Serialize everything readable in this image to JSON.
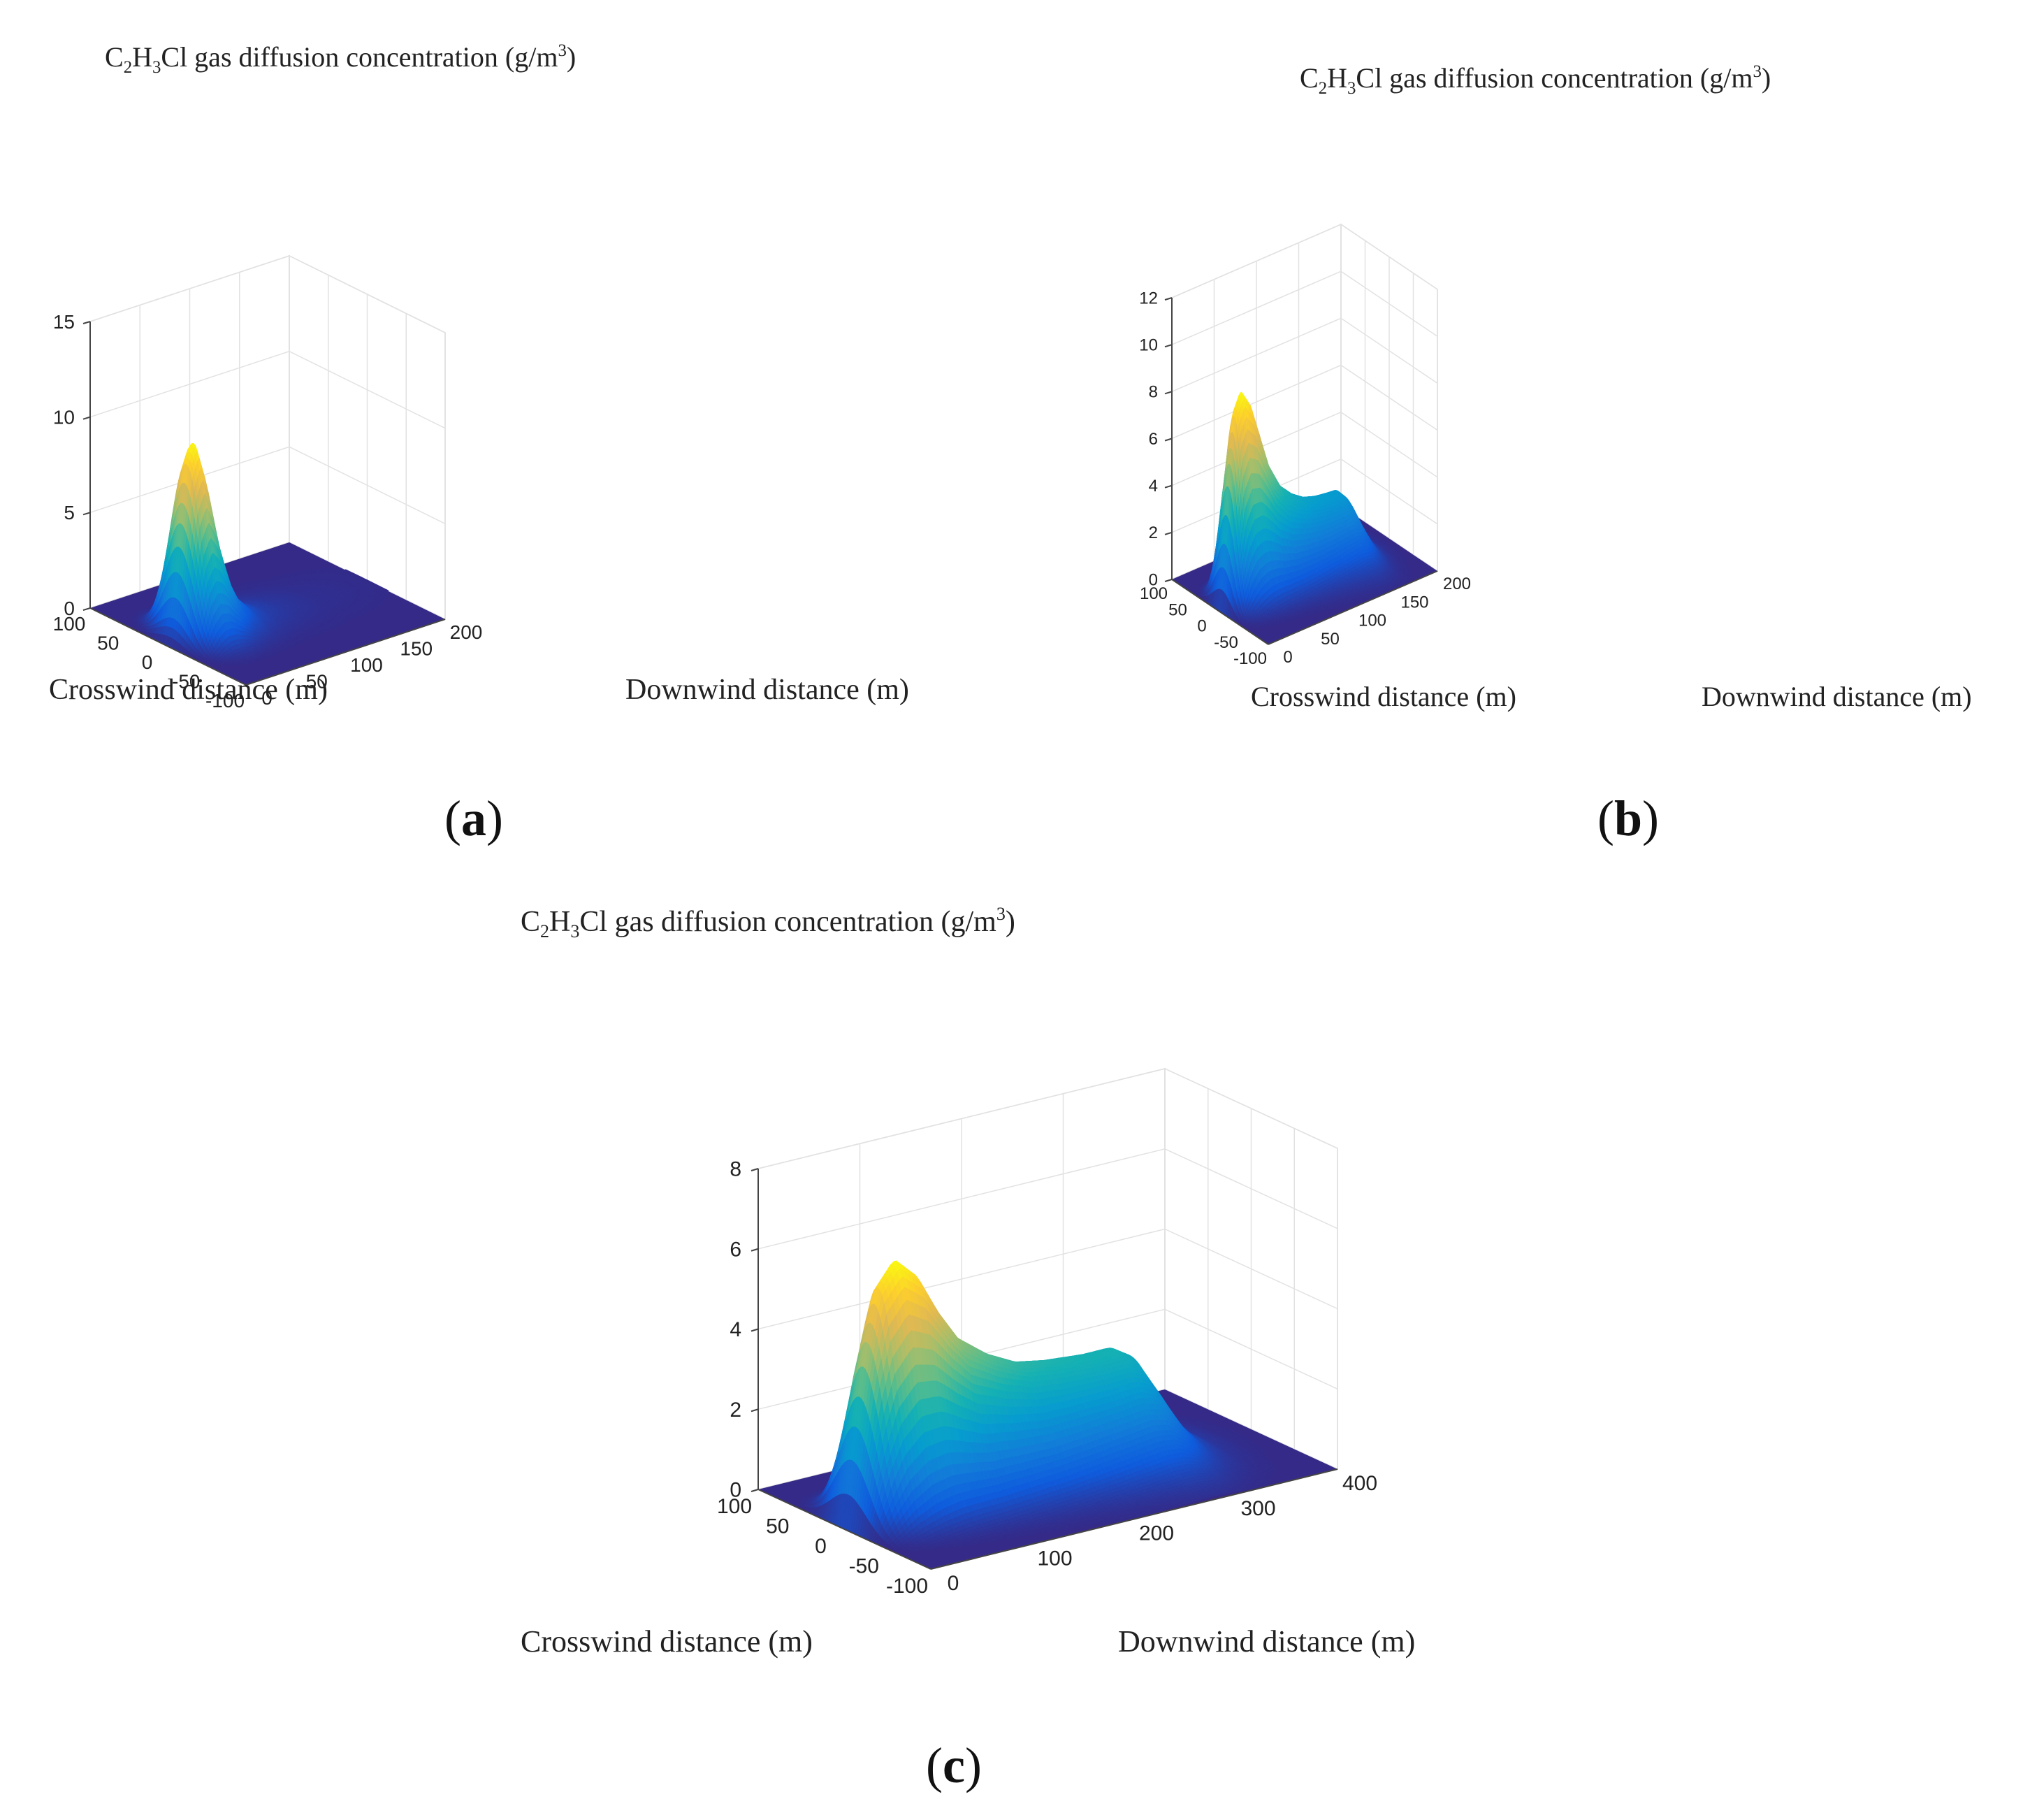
{
  "chart_data": [
    {
      "type": "surface",
      "panel_label": "(a)",
      "title": "C2H3Cl gas diffusion concentration (g/m3)",
      "title_parts": {
        "pre": "C",
        "s1": "2",
        "mid": "H",
        "s2": "3",
        "post": "Cl gas diffusion concentration  (g/m",
        "sup": "3",
        "end": ")"
      },
      "xlabel": "Crosswind distance (m)",
      "ylabel": "Downwind distance (m)",
      "zlabel": "",
      "xlim": [
        -100,
        100
      ],
      "ylim": [
        0,
        200
      ],
      "zlim": [
        0,
        15
      ],
      "x_ticks": [
        "-100",
        "-50",
        "0",
        "50",
        "100"
      ],
      "y_ticks": [
        "0",
        "50",
        "100",
        "150",
        "200"
      ],
      "z_ticks": [
        "0",
        "5",
        "10",
        "15"
      ],
      "grid": true,
      "colormap": "parula",
      "peak": {
        "x": 0,
        "y": 25,
        "z": 10.3
      },
      "centerline": [
        {
          "y": 0,
          "z": 0
        },
        {
          "y": 6,
          "z": 1.5
        },
        {
          "y": 12,
          "z": 5.8
        },
        {
          "y": 18,
          "z": 9.2
        },
        {
          "y": 25,
          "z": 10.3
        },
        {
          "y": 32,
          "z": 8.8
        },
        {
          "y": 40,
          "z": 6.0
        },
        {
          "y": 50,
          "z": 3.4
        },
        {
          "y": 60,
          "z": 1.9
        },
        {
          "y": 75,
          "z": 0.9
        },
        {
          "y": 90,
          "z": 0.5
        },
        {
          "y": 110,
          "z": 0.3
        },
        {
          "y": 140,
          "z": 0.15
        },
        {
          "y": 170,
          "z": 0.1
        },
        {
          "y": 200,
          "z": 0.05
        }
      ]
    },
    {
      "type": "surface",
      "panel_label": "(b)",
      "title": "C2H3Cl gas diffusion concentration (g/m3)",
      "title_parts": {
        "pre": "C",
        "s1": "2",
        "mid": "H",
        "s2": "3",
        "post": "Cl gas diffusion concentration  (g/m",
        "sup": "3",
        "end": ")"
      },
      "xlabel": "Crosswind distance (m)",
      "ylabel": "Downwind distance (m)",
      "zlabel": "",
      "xlim": [
        -100,
        100
      ],
      "ylim": [
        0,
        200
      ],
      "zlim": [
        0,
        12
      ],
      "x_ticks": [
        "-100",
        "-50",
        "0",
        "50",
        "100"
      ],
      "y_ticks": [
        "0",
        "50",
        "100",
        "150",
        "200"
      ],
      "z_ticks": [
        "0",
        "2",
        "4",
        "6",
        "8",
        "10",
        "12"
      ],
      "grid": true,
      "colormap": "parula",
      "peak": {
        "x": 0,
        "y": 25,
        "z": 9.0
      },
      "centerline": [
        {
          "y": 0,
          "z": 0
        },
        {
          "y": 5,
          "z": 2.5
        },
        {
          "y": 10,
          "z": 5.8
        },
        {
          "y": 17,
          "z": 8.3
        },
        {
          "y": 25,
          "z": 9.0
        },
        {
          "y": 35,
          "z": 8.3
        },
        {
          "y": 45,
          "z": 6.9
        },
        {
          "y": 55,
          "z": 5.5
        },
        {
          "y": 70,
          "z": 4.3
        },
        {
          "y": 85,
          "z": 3.7
        },
        {
          "y": 100,
          "z": 3.3
        },
        {
          "y": 115,
          "z": 3.1
        },
        {
          "y": 130,
          "z": 3.0
        },
        {
          "y": 140,
          "z": 2.95
        },
        {
          "y": 148,
          "z": 2.6
        },
        {
          "y": 156,
          "z": 1.8
        },
        {
          "y": 164,
          "z": 1.0
        },
        {
          "y": 172,
          "z": 0.45
        },
        {
          "y": 182,
          "z": 0.15
        },
        {
          "y": 192,
          "z": 0.05
        },
        {
          "y": 200,
          "z": 0.0
        }
      ]
    },
    {
      "type": "surface",
      "panel_label": "(c)",
      "title": "C2H3Cl gas diffusion concentration (g/m3)",
      "title_parts": {
        "pre": "C",
        "s1": "2",
        "mid": "H",
        "s2": "3",
        "post": "Cl gas diffusion concentration  (g/m",
        "sup": "3",
        "end": ")"
      },
      "xlabel": "Crosswind distance (m)",
      "ylabel": "Downwind distance (m)",
      "zlabel": "",
      "xlim": [
        -100,
        100
      ],
      "ylim": [
        0,
        400
      ],
      "zlim": [
        0,
        8
      ],
      "x_ticks": [
        "-100",
        "-50",
        "0",
        "50",
        "100"
      ],
      "y_ticks": [
        "0",
        "100",
        "200",
        "300",
        "400"
      ],
      "z_ticks": [
        "0",
        "2",
        "4",
        "6",
        "8"
      ],
      "grid": true,
      "colormap": "parula",
      "peak": {
        "x": 0,
        "y": 50,
        "z": 6.4
      },
      "centerline": [
        {
          "y": 0,
          "z": 0
        },
        {
          "y": 10,
          "z": 2.3
        },
        {
          "y": 20,
          "z": 4.3
        },
        {
          "y": 32,
          "z": 5.8
        },
        {
          "y": 50,
          "z": 6.4
        },
        {
          "y": 70,
          "z": 5.9
        },
        {
          "y": 90,
          "z": 4.9
        },
        {
          "y": 110,
          "z": 4.1
        },
        {
          "y": 140,
          "z": 3.5
        },
        {
          "y": 170,
          "z": 3.1
        },
        {
          "y": 200,
          "z": 2.95
        },
        {
          "y": 240,
          "z": 2.85
        },
        {
          "y": 265,
          "z": 2.85
        },
        {
          "y": 280,
          "z": 2.6
        },
        {
          "y": 295,
          "z": 1.9
        },
        {
          "y": 310,
          "z": 1.1
        },
        {
          "y": 325,
          "z": 0.55
        },
        {
          "y": 345,
          "z": 0.2
        },
        {
          "y": 370,
          "z": 0.05
        },
        {
          "y": 400,
          "z": 0.0
        }
      ]
    }
  ]
}
